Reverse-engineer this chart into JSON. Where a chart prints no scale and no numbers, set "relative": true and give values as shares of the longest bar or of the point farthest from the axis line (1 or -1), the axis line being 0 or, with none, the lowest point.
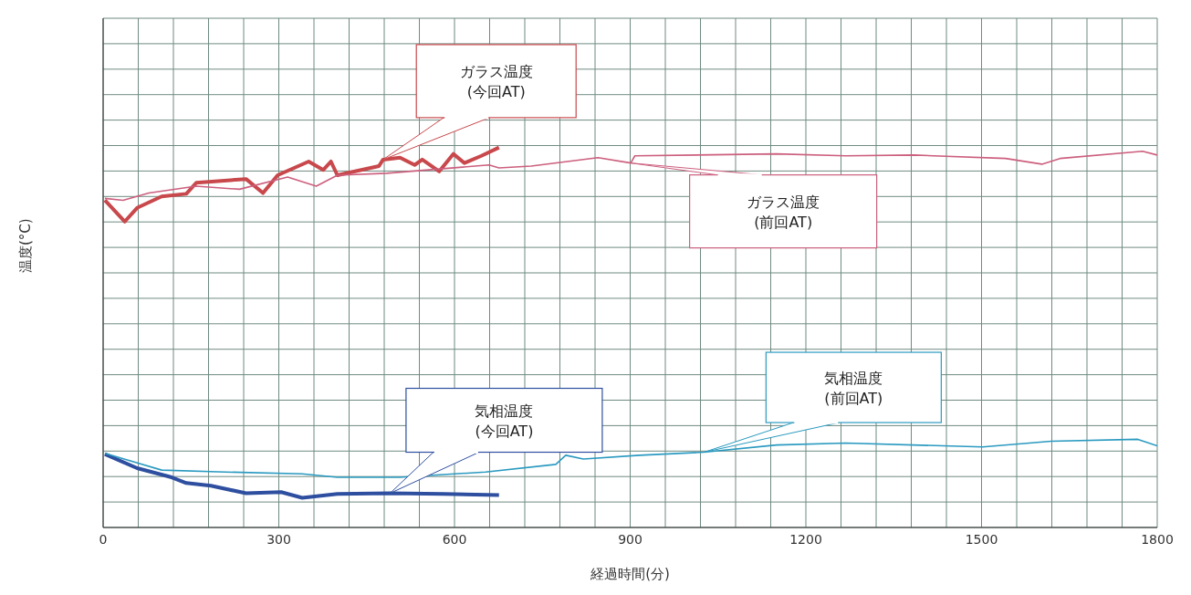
{
  "chart_data": {
    "type": "line",
    "relative": true,
    "xlabel": "経過時間(分)",
    "ylabel": "温度(°C)",
    "xlim": [
      0,
      1800
    ],
    "xticks": [
      0,
      300,
      600,
      900,
      1200,
      1500,
      1800
    ],
    "grid": true,
    "series": [
      {
        "color": "#c8484c",
        "x": [
          3,
          37,
          58,
          100,
          142,
          159,
          244,
          273,
          298,
          351,
          376,
          389,
          400,
          471,
          478,
          507,
          532,
          545,
          574,
          598,
          617,
          646,
          676
        ],
        "values": [
          0.861,
          0.805,
          0.841,
          0.871,
          0.878,
          0.907,
          0.917,
          0.88,
          0.927,
          0.963,
          0.941,
          0.963,
          0.927,
          0.951,
          0.968,
          0.973,
          0.954,
          0.968,
          0.937,
          0.983,
          0.959,
          0.978,
          1
        ]
      },
      {
        "color": "#cc5f7e",
        "x": [
          3,
          34,
          78,
          159,
          233,
          315,
          364,
          400,
          484,
          659,
          676,
          731,
          845,
          901,
          908,
          1150,
          1268,
          1385,
          1541,
          1603,
          1634,
          1775,
          1800
        ],
        "values": [
          0.866,
          0.861,
          0.88,
          0.898,
          0.89,
          0.922,
          0.898,
          0.927,
          0.932,
          0.954,
          0.946,
          0.951,
          0.973,
          0.959,
          0.978,
          0.983,
          0.978,
          0.98,
          0.971,
          0.956,
          0.971,
          0.99,
          0.98
        ]
      },
      {
        "color": "#2e4fa0",
        "x": [
          3,
          58,
          117,
          142,
          184,
          244,
          304,
          340,
          400,
          490,
          581,
          676
        ],
        "values": [
          0.193,
          0.156,
          0.132,
          0.117,
          0.11,
          0.09,
          0.093,
          0.078,
          0.088,
          0.09,
          0.088,
          0.085
        ]
      },
      {
        "color": "#2a9ac0",
        "x": [
          3,
          100,
          208,
          340,
          400,
          507,
          653,
          773,
          790,
          820,
          916,
          1026,
          1150,
          1268,
          1502,
          1619,
          1767,
          1800
        ],
        "values": [
          0.195,
          0.151,
          0.146,
          0.141,
          0.132,
          0.132,
          0.146,
          0.166,
          0.19,
          0.18,
          0.19,
          0.198,
          0.217,
          0.222,
          0.212,
          0.227,
          0.232,
          0.215
        ]
      }
    ],
    "annotations": [
      {
        "text": "ガラス温度\n(今回AT)",
        "x": 478,
        "y": 0.968
      },
      {
        "text": "ガラス温度\n(前回AT)",
        "x": 901,
        "y": 0.959
      },
      {
        "text": "気相温度\n(今回AT)",
        "x": 490,
        "y": 0.09
      },
      {
        "text": "気相温度\n(前回AT)",
        "x": 1026,
        "y": 0.198
      }
    ]
  }
}
